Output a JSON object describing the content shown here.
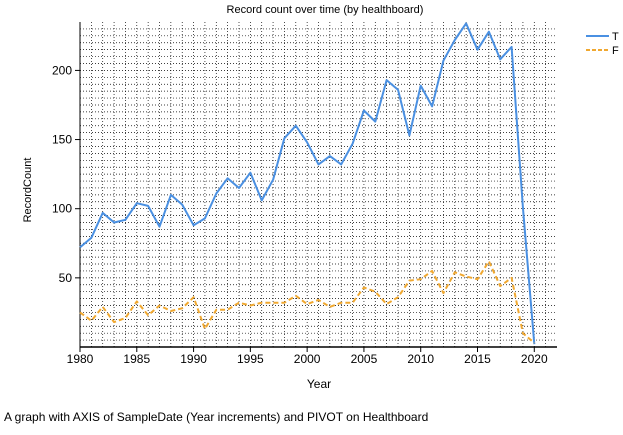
{
  "caption": "A graph with AXIS of SampleDate (Year increments) and PIVOT on Healthboard",
  "chart_data": {
    "type": "line",
    "title": "Record count over time (by healthboard)",
    "xlabel": "Year",
    "ylabel": "RecordCount",
    "xlim": [
      1980,
      2022
    ],
    "ylim": [
      0,
      235
    ],
    "x_ticks": [
      1980,
      1985,
      1990,
      1995,
      2000,
      2005,
      2010,
      2015,
      2020
    ],
    "y_ticks": [
      50,
      100,
      150,
      200
    ],
    "grid": true,
    "legend_position": "top-right",
    "x": [
      1980,
      1981,
      1982,
      1983,
      1984,
      1985,
      1986,
      1987,
      1988,
      1989,
      1990,
      1991,
      1992,
      1993,
      1994,
      1995,
      1996,
      1997,
      1998,
      1999,
      2000,
      2001,
      2002,
      2003,
      2004,
      2005,
      2006,
      2007,
      2008,
      2009,
      2010,
      2011,
      2012,
      2013,
      2014,
      2015,
      2016,
      2017,
      2018,
      2019,
      2020
    ],
    "series": [
      {
        "name": "T",
        "color": "#4a90e2",
        "dash": "solid",
        "values": [
          72,
          79,
          97,
          90,
          92,
          104,
          102,
          87,
          110,
          103,
          88,
          93,
          111,
          122,
          115,
          126,
          106,
          121,
          151,
          160,
          148,
          132,
          138,
          132,
          147,
          171,
          163,
          193,
          186,
          153,
          189,
          174,
          207,
          222,
          234,
          215,
          228,
          208,
          217,
          101,
          2
        ]
      },
      {
        "name": "F",
        "color": "#f0a830",
        "dash": "dashed",
        "values": [
          25,
          19,
          29,
          18,
          21,
          33,
          23,
          30,
          26,
          28,
          36,
          13,
          27,
          27,
          32,
          30,
          32,
          32,
          32,
          37,
          31,
          34,
          29,
          32,
          32,
          43,
          40,
          31,
          36,
          48,
          49,
          55,
          39,
          54,
          51,
          49,
          62,
          44,
          50,
          10,
          3
        ]
      }
    ]
  }
}
